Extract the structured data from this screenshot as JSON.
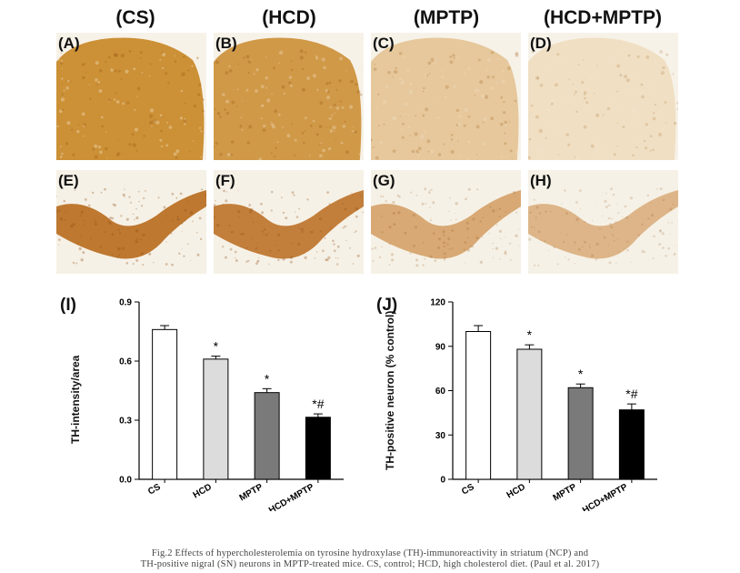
{
  "column_titles": [
    "(CS)",
    "(HCD)",
    "(MPTP)",
    "(HCD+MPTP)"
  ],
  "panels_top": [
    {
      "label": "(A)",
      "color": "#c98a2c",
      "intensity": 0.95
    },
    {
      "label": "(B)",
      "color": "#c98a2c",
      "intensity": 0.85
    },
    {
      "label": "(C)",
      "color": "#d9a65c",
      "intensity": 0.55
    },
    {
      "label": "(D)",
      "color": "#e3bd7e",
      "intensity": 0.35
    }
  ],
  "panels_bottom": [
    {
      "label": "(E)",
      "color": "#b86a1c",
      "intensity": 0.9
    },
    {
      "label": "(F)",
      "color": "#b86a1c",
      "intensity": 0.85
    },
    {
      "label": "(G)",
      "color": "#c47a2a",
      "intensity": 0.6
    },
    {
      "label": "(H)",
      "color": "#c47a2a",
      "intensity": 0.5
    }
  ],
  "chart_data": [
    {
      "type": "bar",
      "panel_label": "(I)",
      "categories": [
        "CS",
        "HCD",
        "MPTP",
        "HCD+MPTP"
      ],
      "values": [
        0.76,
        0.61,
        0.44,
        0.315
      ],
      "errors": [
        0.02,
        0.015,
        0.02,
        0.017
      ],
      "annotations": [
        "",
        "*",
        "*",
        "*#"
      ],
      "bar_colors": [
        "#ffffff",
        "#dcdcdc",
        "#7a7a7a",
        "#000000"
      ],
      "ylabel": "TH-intensity/area",
      "ylim": [
        0,
        0.9
      ],
      "yticks": [
        "0.0",
        "0.3",
        "0.6",
        "0.9"
      ],
      "ytick_values": [
        0,
        0.3,
        0.6,
        0.9
      ]
    },
    {
      "type": "bar",
      "panel_label": "(J)",
      "categories": [
        "CS",
        "HCD",
        "MPTP",
        "HCD+MPTP"
      ],
      "values": [
        100,
        88,
        62,
        47
      ],
      "errors": [
        4,
        3,
        2.5,
        4
      ],
      "annotations": [
        "",
        "*",
        "*",
        "*#"
      ],
      "bar_colors": [
        "#ffffff",
        "#dcdcdc",
        "#7a7a7a",
        "#000000"
      ],
      "ylabel": "TH-positive neuron (% control)",
      "ylim": [
        0,
        120
      ],
      "yticks": [
        "0",
        "30",
        "60",
        "90",
        "120"
      ],
      "ytick_values": [
        0,
        30,
        60,
        90,
        120
      ]
    }
  ],
  "caption": {
    "line1": "Fig.2 Effects of hypercholesterolemia on tyrosine hydroxylase (TH)-immunoreactivity in striatum (NCP) and",
    "line2": "TH-positive nigral (SN) neurons in MPTP-treated mice. CS, control; HCD, high cholesterol diet. (Paul et al. 2017)"
  }
}
